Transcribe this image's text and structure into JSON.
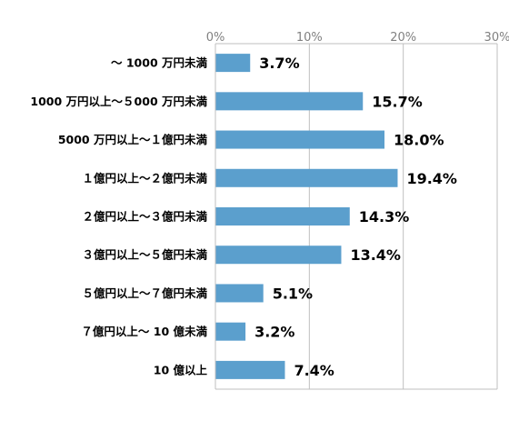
{
  "chart_data": {
    "type": "bar",
    "orientation": "horizontal",
    "categories": [
      "〜 1000 万円未満",
      "1000 万円以上〜５000 万円未満",
      "5000 万円以上〜１億円未満",
      "１億円以上〜２億円未満",
      "２億円以上〜３億円未満",
      "３億円以上〜５億円未満",
      "５億円以上〜７億円未満",
      "７億円以上〜 10 億未満",
      "10 億以上"
    ],
    "values": [
      3.7,
      15.7,
      18.0,
      19.4,
      14.3,
      13.4,
      5.1,
      3.2,
      7.4
    ],
    "value_labels": [
      "3.7%",
      "15.7%",
      "18.0%",
      "19.4%",
      "14.3%",
      "13.4%",
      "5.1%",
      "3.2%",
      "7.4%"
    ],
    "xlim": [
      0,
      30
    ],
    "x_ticks": [
      0,
      10,
      20,
      30
    ],
    "x_tick_labels": [
      "0%",
      "10%",
      "20%",
      "30%"
    ],
    "x_axis_position": "top",
    "grid": true,
    "legend": "none",
    "bar_color": "#5B9FCD",
    "grid_color": "#BFBFBF",
    "title": "",
    "xlabel": "",
    "ylabel": ""
  }
}
